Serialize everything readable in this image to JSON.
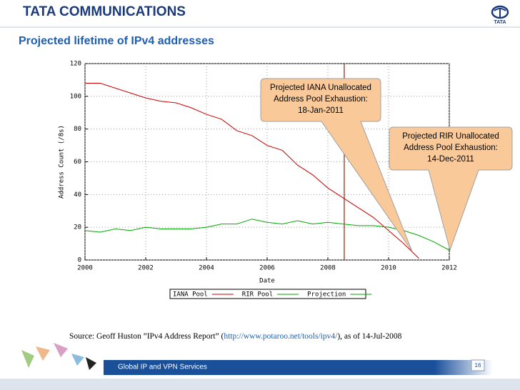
{
  "header": {
    "brand": "TATA COMMUNICATIONS",
    "title": "Projected lifetime of IPv4 addresses"
  },
  "chart_data": {
    "type": "line",
    "xlabel": "Date",
    "ylabel": "Address Count (/8s)",
    "x": [
      2000,
      2000.5,
      2001,
      2001.5,
      2002,
      2002.5,
      2003,
      2003.5,
      2004,
      2004.5,
      2005,
      2005.5,
      2006,
      2006.5,
      2007,
      2007.5,
      2008,
      2008.5,
      2009,
      2009.5,
      2010,
      2010.5,
      2011,
      2011.5,
      2012
    ],
    "series": [
      {
        "name": "IANA Pool",
        "color": "#cc0000",
        "values": [
          108,
          108,
          105,
          102,
          99,
          97,
          96,
          93,
          89,
          86,
          79,
          76,
          70,
          67,
          58,
          52,
          44,
          38,
          32,
          26,
          18,
          10,
          1,
          null,
          null
        ]
      },
      {
        "name": "RIR Pool",
        "color": "#00aa00",
        "values": [
          18,
          17,
          19,
          18,
          20,
          19,
          19,
          19,
          20,
          22,
          22,
          25,
          23,
          22,
          24,
          22,
          23,
          22,
          null,
          null,
          null,
          null,
          null,
          null,
          null
        ]
      },
      {
        "name": "Projection",
        "color": "#00aa00",
        "values": [
          null,
          null,
          null,
          null,
          null,
          null,
          null,
          null,
          null,
          null,
          null,
          null,
          null,
          null,
          null,
          null,
          null,
          22,
          21,
          21,
          20,
          18,
          15,
          11,
          6
        ]
      }
    ],
    "xlim": [
      2000,
      2012
    ],
    "xticks": [
      2000,
      2002,
      2004,
      2006,
      2008,
      2010,
      2012
    ],
    "ylim": [
      0,
      120
    ],
    "yticks": [
      0,
      20,
      40,
      60,
      80,
      100,
      120
    ],
    "grid": true,
    "vline_x": 2008.54,
    "vline_color": "#8b3a1a",
    "annotations": [
      {
        "lines": [
          "Projected IANA Unallocated",
          "Address Pool Exhaustion:",
          "18-Jan-2011"
        ]
      },
      {
        "lines": [
          "Projected RIR Unallocated",
          "Address Pool Exhaustion:",
          "14-Dec-2011"
        ]
      }
    ]
  },
  "source": {
    "prefix": "Source: Geoff Huston ”IPv4 Address Report” (",
    "link": "http://www.potaroo.net/tools/ipv4/",
    "suffix": "), as of 14-Jul-2008"
  },
  "footer": {
    "text": "Global IP and VPN Services",
    "page": "16"
  }
}
